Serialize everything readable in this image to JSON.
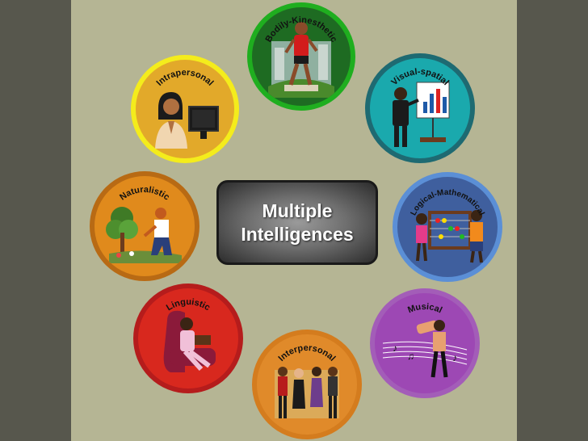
{
  "diagram": {
    "title_line1": "Multiple",
    "title_line2": "Intelligences",
    "nodes": [
      {
        "id": "bodily",
        "label": "Bodily-Kinesthetic",
        "ring": "#1fae1f",
        "fill": "#1e6b22",
        "icon": "runner-icon"
      },
      {
        "id": "visual",
        "label": "Visual-spatial",
        "ring": "#1e6a72",
        "fill": "#1aa9ad",
        "icon": "presenter-chart-icon"
      },
      {
        "id": "logical",
        "label": "Logical-Mathematical",
        "ring": "#5b8fd6",
        "fill": "#3f5f9e",
        "icon": "abacus-kids-icon"
      },
      {
        "id": "musical",
        "label": "Musical",
        "ring": "#a35db8",
        "fill": "#9d48b4",
        "icon": "dancers-music-icon"
      },
      {
        "id": "interpersonal",
        "label": "Interpersonal",
        "ring": "#d47c1e",
        "fill": "#e08a2a",
        "icon": "group-talking-icon"
      },
      {
        "id": "linguistic",
        "label": "Linguistic",
        "ring": "#b51c1c",
        "fill": "#d8281e",
        "icon": "reader-chair-icon"
      },
      {
        "id": "naturalistic",
        "label": "Naturalistic",
        "ring": "#b86a14",
        "fill": "#e08a1c",
        "icon": "gardener-icon"
      },
      {
        "id": "intrapersonal",
        "label": "Intrapersonal",
        "ring": "#f4ec1c",
        "fill": "#e2a92a",
        "icon": "woman-computer-icon"
      }
    ]
  }
}
